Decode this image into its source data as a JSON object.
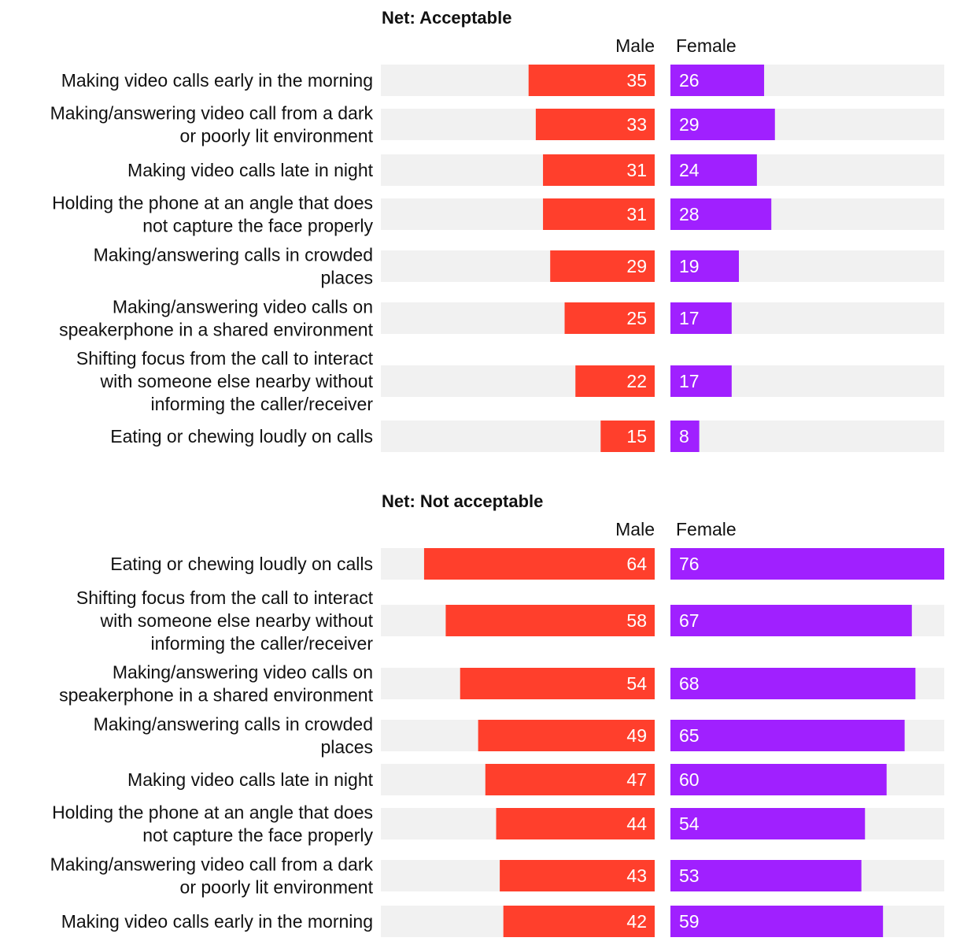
{
  "chart_data": [
    {
      "type": "bar",
      "orientation": "horizontal-diverging",
      "title": "Net: Acceptable",
      "categories": [
        [
          "Making video calls early in the morning"
        ],
        [
          "Making/answering video call from a dark",
          "or poorly lit environment"
        ],
        [
          "Making video calls late in night"
        ],
        [
          "Holding the phone at an angle that does",
          "not capture the face properly"
        ],
        [
          "Making/answering calls in crowded",
          "places"
        ],
        [
          "Making/answering video calls on",
          "speakerphone in a shared environment"
        ],
        [
          "Shifting focus from the call to interact",
          "with someone else nearby without",
          "informing the caller/receiver"
        ],
        [
          "Eating or chewing loudly on calls"
        ]
      ],
      "series": [
        {
          "name": "Male",
          "color": "#ff3f2c",
          "values": [
            35,
            33,
            31,
            31,
            29,
            25,
            22,
            15
          ]
        },
        {
          "name": "Female",
          "color": "#a020ff",
          "values": [
            26,
            29,
            24,
            28,
            19,
            17,
            17,
            8
          ]
        }
      ],
      "xlim": [
        0,
        100
      ]
    },
    {
      "type": "bar",
      "orientation": "horizontal-diverging",
      "title": "Net: Not acceptable",
      "categories": [
        [
          "Eating or chewing loudly on calls"
        ],
        [
          "Shifting focus from the call to interact",
          "with someone else nearby without",
          "informing the caller/receiver"
        ],
        [
          "Making/answering video calls on",
          "speakerphone in a shared environment"
        ],
        [
          "Making/answering calls in crowded",
          "places"
        ],
        [
          "Making video calls late in night"
        ],
        [
          "Holding the phone at an angle that does",
          "not capture the face properly"
        ],
        [
          "Making/answering video call from a dark",
          "or poorly lit environment"
        ],
        [
          "Making video calls early in the morning"
        ]
      ],
      "series": [
        {
          "name": "Male",
          "color": "#ff3f2c",
          "values": [
            64,
            58,
            54,
            49,
            47,
            44,
            43,
            42
          ]
        },
        {
          "name": "Female",
          "color": "#a020ff",
          "values": [
            76,
            67,
            68,
            65,
            60,
            54,
            53,
            59
          ]
        }
      ],
      "xlim": [
        0,
        100
      ]
    }
  ],
  "colors": {
    "track": "#f1f1f1",
    "label_on_bar": "#ffffff"
  }
}
